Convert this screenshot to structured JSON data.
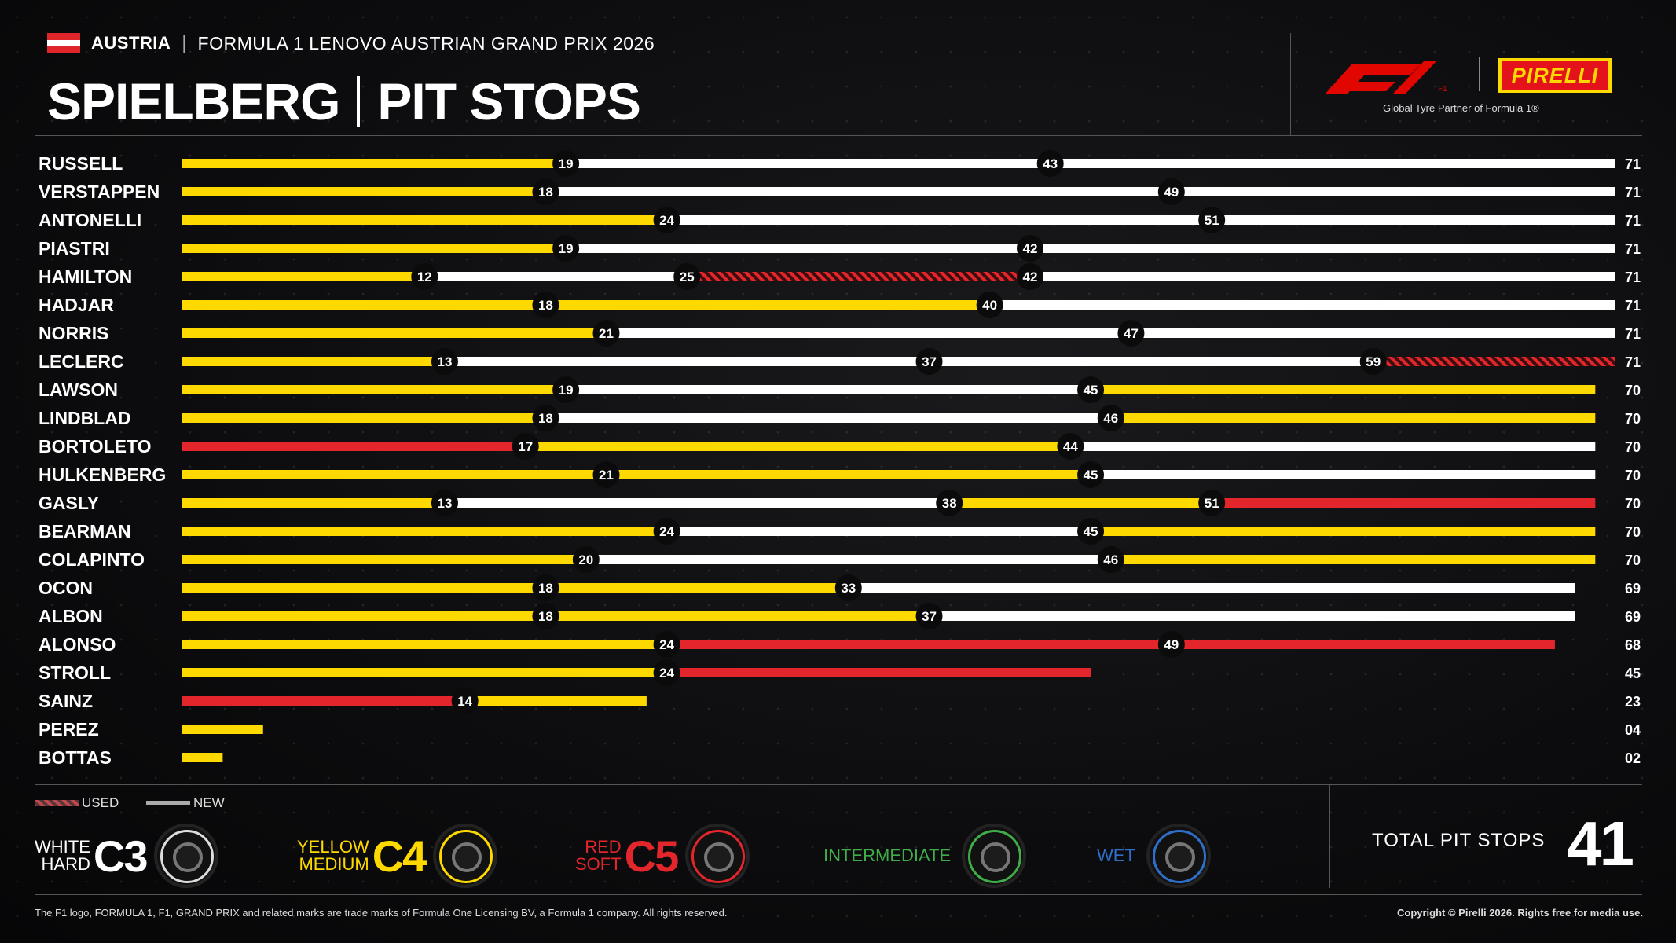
{
  "header": {
    "country": "AUSTRIA",
    "grand_prix": "FORMULA 1 LENOVO AUSTRIAN GRAND PRIX 2026",
    "circuit": "SPIELBERG",
    "section": "PIT STOPS",
    "f1_logo": "F1",
    "pirelli_logo": "PIRELLI",
    "tagline": "Global Tyre Partner of Formula 1®"
  },
  "legend": {
    "used": "USED",
    "new": "NEW",
    "tyres": [
      {
        "line1": "WHITE",
        "line2": "HARD",
        "code": "C3",
        "color": "#ffffff",
        "icon": "tyre-hard-icon"
      },
      {
        "line1": "YELLOW",
        "line2": "MEDIUM",
        "code": "C4",
        "color": "#fed900",
        "icon": "tyre-medium-icon"
      },
      {
        "line1": "RED",
        "line2": "SOFT",
        "code": "C5",
        "color": "#e3262b",
        "icon": "tyre-soft-icon"
      },
      {
        "line1": "INTERMEDIATE",
        "line2": "",
        "code": "",
        "color": "#3fae49",
        "icon": "tyre-intermediate-icon"
      },
      {
        "line1": "WET",
        "line2": "",
        "code": "",
        "color": "#2f6ec9",
        "icon": "tyre-wet-icon"
      }
    ]
  },
  "total": {
    "label": "TOTAL PIT STOPS",
    "value": "41"
  },
  "footer": {
    "left": "The F1 logo, FORMULA 1, F1, GRAND PRIX and related marks are trade marks of Formula One Licensing BV, a Formula 1 company. All rights reserved.",
    "right": "Copyright © Pirelli 2026. Rights free for media use."
  },
  "colors": {
    "hard": "#ffffff",
    "medium": "#fed900",
    "soft": "#e3262b"
  },
  "chart_data": {
    "type": "bar",
    "orientation": "horizontal-stacked",
    "x_axis": "lap",
    "xlim": [
      0,
      71
    ],
    "drivers": [
      {
        "name": "RUSSELL",
        "end": "71",
        "stints": [
          {
            "to": 19,
            "c": "medium"
          },
          {
            "to": 43,
            "c": "hard"
          },
          {
            "to": 71,
            "c": "hard"
          }
        ]
      },
      {
        "name": "VERSTAPPEN",
        "end": "71",
        "stints": [
          {
            "to": 18,
            "c": "medium"
          },
          {
            "to": 49,
            "c": "hard"
          },
          {
            "to": 71,
            "c": "hard"
          }
        ]
      },
      {
        "name": "ANTONELLI",
        "end": "71",
        "stints": [
          {
            "to": 24,
            "c": "medium"
          },
          {
            "to": 51,
            "c": "hard"
          },
          {
            "to": 71,
            "c": "hard"
          }
        ]
      },
      {
        "name": "PIASTRI",
        "end": "71",
        "stints": [
          {
            "to": 19,
            "c": "medium"
          },
          {
            "to": 42,
            "c": "hard"
          },
          {
            "to": 71,
            "c": "hard"
          }
        ]
      },
      {
        "name": "HAMILTON",
        "end": "71",
        "stints": [
          {
            "to": 12,
            "c": "medium"
          },
          {
            "to": 25,
            "c": "hard"
          },
          {
            "to": 42,
            "c": "soft",
            "used": true
          },
          {
            "to": 71,
            "c": "hard"
          }
        ]
      },
      {
        "name": "HADJAR",
        "end": "71",
        "stints": [
          {
            "to": 18,
            "c": "medium"
          },
          {
            "to": 40,
            "c": "medium"
          },
          {
            "to": 71,
            "c": "hard"
          }
        ]
      },
      {
        "name": "NORRIS",
        "end": "71",
        "stints": [
          {
            "to": 21,
            "c": "medium"
          },
          {
            "to": 47,
            "c": "hard"
          },
          {
            "to": 71,
            "c": "hard"
          }
        ]
      },
      {
        "name": "LECLERC",
        "end": "71",
        "stints": [
          {
            "to": 13,
            "c": "medium"
          },
          {
            "to": 37,
            "c": "hard"
          },
          {
            "to": 59,
            "c": "hard"
          },
          {
            "to": 71,
            "c": "soft",
            "used": true
          }
        ]
      },
      {
        "name": "LAWSON",
        "end": "70",
        "stints": [
          {
            "to": 19,
            "c": "medium"
          },
          {
            "to": 45,
            "c": "hard"
          },
          {
            "to": 70,
            "c": "medium"
          }
        ]
      },
      {
        "name": "LINDBLAD",
        "end": "70",
        "stints": [
          {
            "to": 18,
            "c": "medium"
          },
          {
            "to": 46,
            "c": "hard"
          },
          {
            "to": 70,
            "c": "medium"
          }
        ]
      },
      {
        "name": "BORTOLETO",
        "end": "70",
        "stints": [
          {
            "to": 17,
            "c": "soft"
          },
          {
            "to": 44,
            "c": "medium"
          },
          {
            "to": 70,
            "c": "hard"
          }
        ]
      },
      {
        "name": "HULKENBERG",
        "end": "70",
        "stints": [
          {
            "to": 21,
            "c": "medium"
          },
          {
            "to": 45,
            "c": "medium"
          },
          {
            "to": 70,
            "c": "hard"
          }
        ]
      },
      {
        "name": "GASLY",
        "end": "70",
        "stints": [
          {
            "to": 13,
            "c": "medium"
          },
          {
            "to": 38,
            "c": "hard"
          },
          {
            "to": 51,
            "c": "medium"
          },
          {
            "to": 70,
            "c": "soft"
          }
        ]
      },
      {
        "name": "BEARMAN",
        "end": "70",
        "stints": [
          {
            "to": 24,
            "c": "medium"
          },
          {
            "to": 45,
            "c": "hard"
          },
          {
            "to": 70,
            "c": "medium"
          }
        ]
      },
      {
        "name": "COLAPINTO",
        "end": "70",
        "stints": [
          {
            "to": 20,
            "c": "medium"
          },
          {
            "to": 46,
            "c": "hard"
          },
          {
            "to": 70,
            "c": "medium"
          }
        ]
      },
      {
        "name": "OCON",
        "end": "69",
        "stints": [
          {
            "to": 18,
            "c": "medium"
          },
          {
            "to": 33,
            "c": "medium"
          },
          {
            "to": 69,
            "c": "hard"
          }
        ]
      },
      {
        "name": "ALBON",
        "end": "69",
        "stints": [
          {
            "to": 18,
            "c": "medium"
          },
          {
            "to": 37,
            "c": "medium"
          },
          {
            "to": 69,
            "c": "hard"
          }
        ]
      },
      {
        "name": "ALONSO",
        "end": "68",
        "stints": [
          {
            "to": 24,
            "c": "medium"
          },
          {
            "to": 49,
            "c": "soft"
          },
          {
            "to": 68,
            "c": "soft"
          }
        ]
      },
      {
        "name": "STROLL",
        "end": "45",
        "stints": [
          {
            "to": 24,
            "c": "medium"
          },
          {
            "to": 45,
            "c": "soft"
          }
        ]
      },
      {
        "name": "SAINZ",
        "end": "23",
        "stints": [
          {
            "to": 14,
            "c": "soft"
          },
          {
            "to": 23,
            "c": "medium"
          }
        ]
      },
      {
        "name": "PEREZ",
        "end": "04",
        "stints": [
          {
            "to": 4,
            "c": "medium"
          }
        ]
      },
      {
        "name": "BOTTAS",
        "end": "02",
        "stints": [
          {
            "to": 2,
            "c": "medium"
          }
        ]
      }
    ]
  }
}
